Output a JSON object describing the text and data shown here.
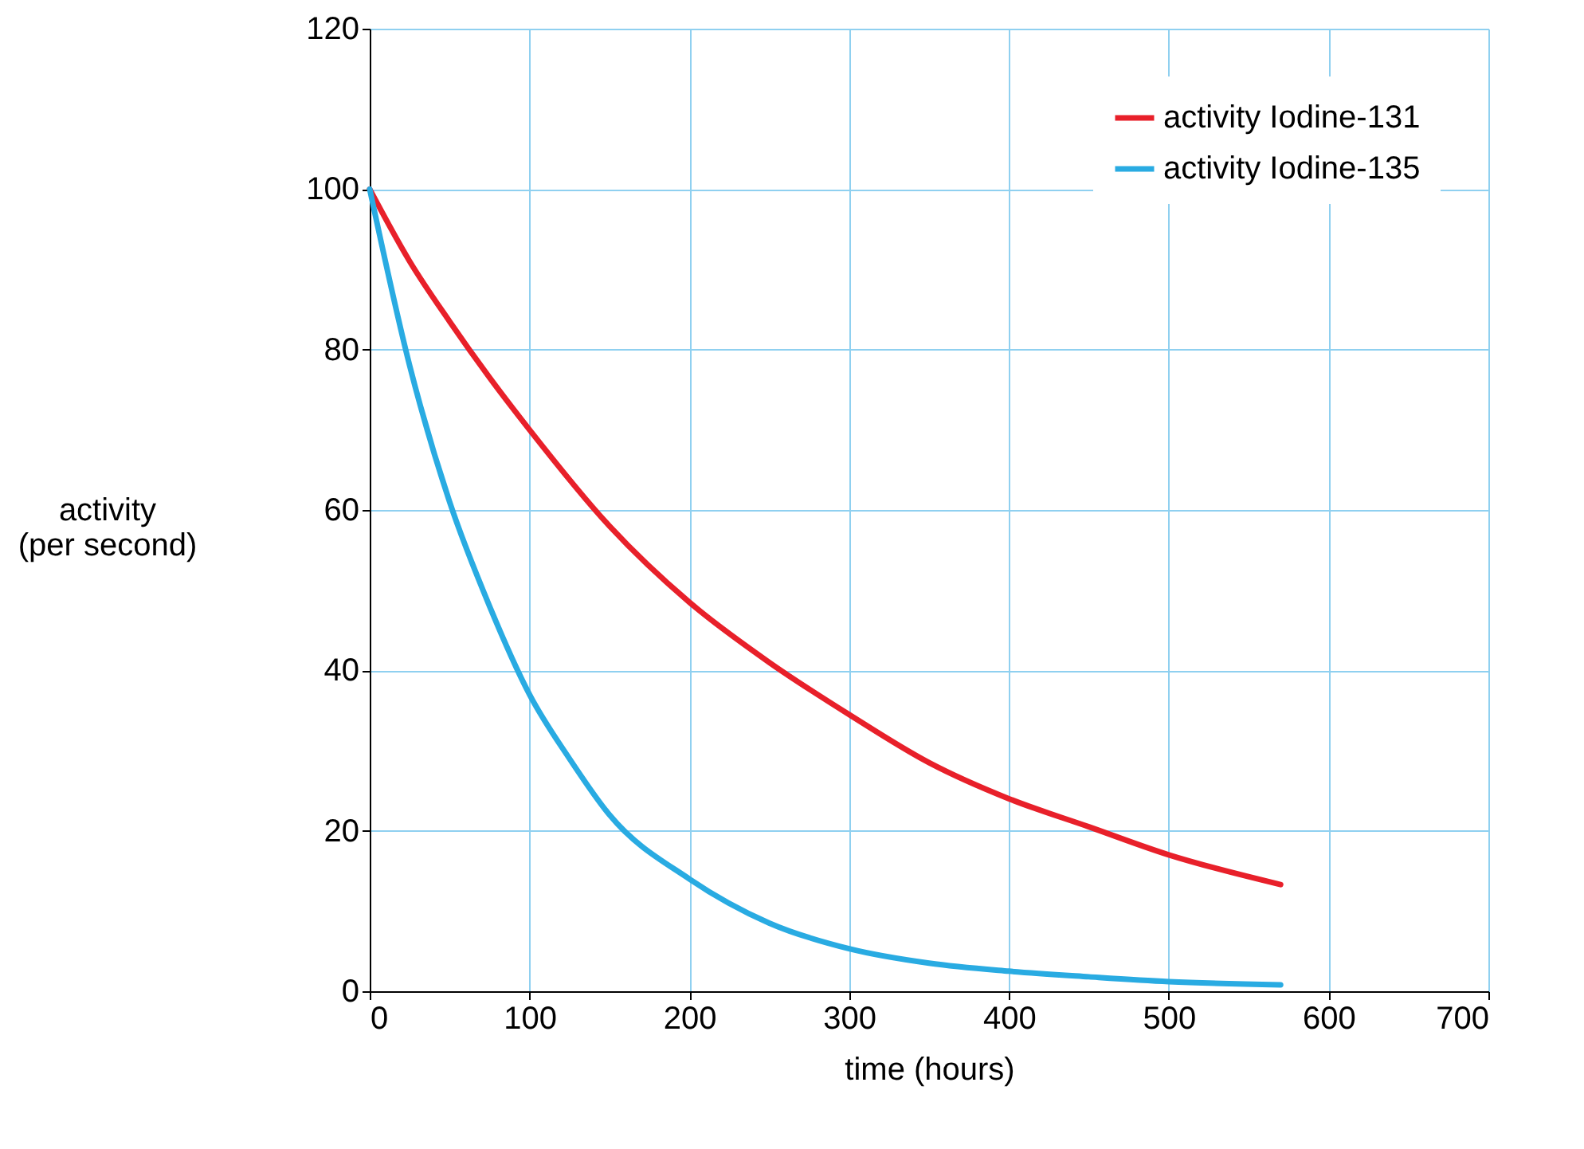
{
  "chart_data": {
    "type": "line",
    "xlabel": "time (hours)",
    "ylabel": "activity\n(per second)",
    "xlim": [
      0,
      700
    ],
    "xticks": [
      0,
      100,
      200,
      300,
      400,
      500,
      600,
      700
    ],
    "ylim": [
      0,
      120
    ],
    "yticks": [
      0,
      20,
      40,
      60,
      80,
      100,
      120
    ],
    "grid": true,
    "legend": "top right",
    "marker": "none",
    "line_style": "solid",
    "series": [
      {
        "name": "activity Iodine-131",
        "color": "#e8202a",
        "x": [
          0,
          25,
          50,
          75,
          100,
          150,
          200,
          250,
          300,
          350,
          400,
          450,
          500,
          570
        ],
        "values": [
          100,
          91,
          83.5,
          76.5,
          70,
          58,
          48.5,
          41,
          34.5,
          28.5,
          24,
          20.5,
          17,
          13.3
        ]
      },
      {
        "name": "activity Iodine-135",
        "color": "#29abe2",
        "x": [
          0,
          25,
          50,
          75,
          100,
          125,
          150,
          200,
          250,
          300,
          350,
          400,
          450,
          500,
          570
        ],
        "values": [
          100,
          78,
          61,
          48,
          37,
          29,
          22,
          14,
          8.5,
          5.3,
          3.5,
          2.5,
          1.8,
          1.2,
          0.8
        ]
      }
    ]
  }
}
